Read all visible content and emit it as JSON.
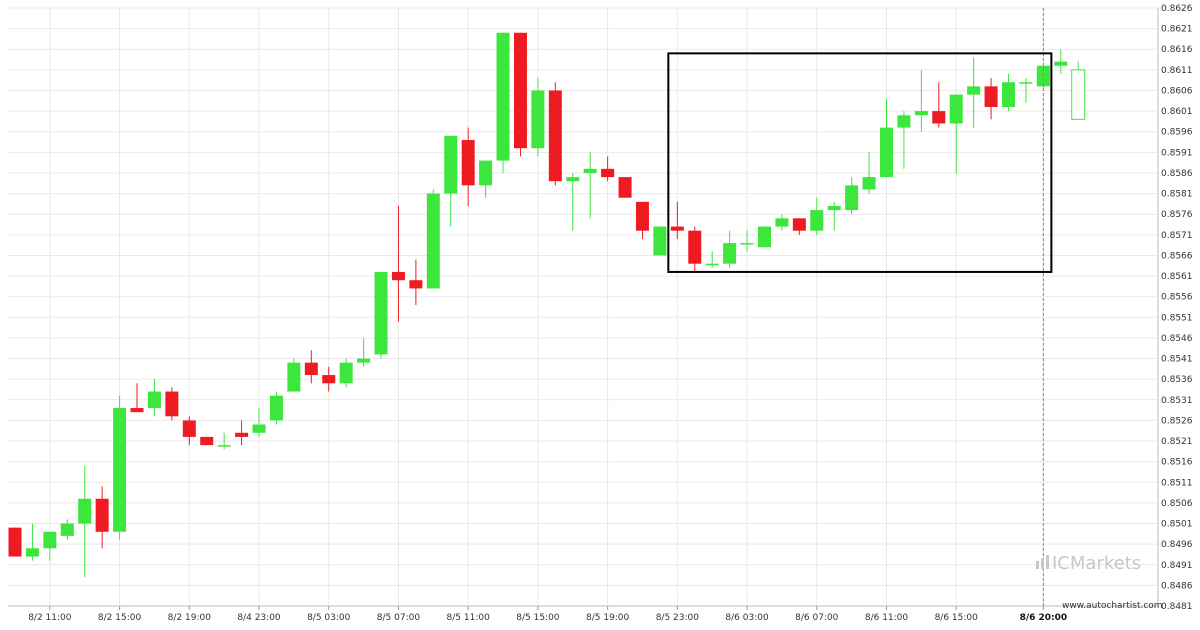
{
  "chart_data": {
    "type": "candlestick",
    "y_ticks": [
      0.8481,
      0.8486,
      0.8491,
      0.8496,
      0.8501,
      0.8506,
      0.8511,
      0.8516,
      0.8521,
      0.8526,
      0.8531,
      0.8536,
      0.8541,
      0.8546,
      0.8551,
      0.8556,
      0.8561,
      0.8566,
      0.8571,
      0.8576,
      0.8581,
      0.8586,
      0.8591,
      0.8596,
      0.8601,
      0.8606,
      0.8611,
      0.8616,
      0.8621,
      0.8626
    ],
    "ylim": [
      0.8481,
      0.8626
    ],
    "x_ticks": [
      {
        "label": "8/2 11:00",
        "index": 2
      },
      {
        "label": "8/2 15:00",
        "index": 6
      },
      {
        "label": "8/2 19:00",
        "index": 10
      },
      {
        "label": "8/4 23:00",
        "index": 14
      },
      {
        "label": "8/5 03:00",
        "index": 18
      },
      {
        "label": "8/5 07:00",
        "index": 22
      },
      {
        "label": "8/5 11:00",
        "index": 26
      },
      {
        "label": "8/5 15:00",
        "index": 30
      },
      {
        "label": "8/5 19:00",
        "index": 34
      },
      {
        "label": "8/5 23:00",
        "index": 38
      },
      {
        "label": "8/6 03:00",
        "index": 42
      },
      {
        "label": "8/6 07:00",
        "index": 46
      },
      {
        "label": "8/6 11:00",
        "index": 50
      },
      {
        "label": "8/6 15:00",
        "index": 54
      },
      {
        "label": "8/6 20:00",
        "index": 59,
        "bold": true
      }
    ],
    "candles": [
      {
        "o": 0.85,
        "h": 0.85,
        "l": 0.8493,
        "c": 0.8493
      },
      {
        "o": 0.8493,
        "h": 0.8501,
        "l": 0.8492,
        "c": 0.8495
      },
      {
        "o": 0.8495,
        "h": 0.8499,
        "l": 0.8492,
        "c": 0.8499
      },
      {
        "o": 0.8498,
        "h": 0.8502,
        "l": 0.8497,
        "c": 0.8501
      },
      {
        "o": 0.8501,
        "h": 0.8515,
        "l": 0.8488,
        "c": 0.8507
      },
      {
        "o": 0.8507,
        "h": 0.851,
        "l": 0.8495,
        "c": 0.8499
      },
      {
        "o": 0.8499,
        "h": 0.8532,
        "l": 0.8497,
        "c": 0.8529
      },
      {
        "o": 0.8529,
        "h": 0.8535,
        "l": 0.8528,
        "c": 0.8528
      },
      {
        "o": 0.8529,
        "h": 0.8536,
        "l": 0.8527,
        "c": 0.8533
      },
      {
        "o": 0.8533,
        "h": 0.8534,
        "l": 0.8526,
        "c": 0.8527
      },
      {
        "o": 0.8526,
        "h": 0.8527,
        "l": 0.852,
        "c": 0.8522
      },
      {
        "o": 0.8522,
        "h": 0.8522,
        "l": 0.852,
        "c": 0.852
      },
      {
        "o": 0.852,
        "h": 0.8523,
        "l": 0.8519,
        "c": 0.852
      },
      {
        "o": 0.8523,
        "h": 0.8526,
        "l": 0.852,
        "c": 0.8522
      },
      {
        "o": 0.8523,
        "h": 0.8529,
        "l": 0.8522,
        "c": 0.8525
      },
      {
        "o": 0.8526,
        "h": 0.8533,
        "l": 0.8525,
        "c": 0.8532
      },
      {
        "o": 0.8533,
        "h": 0.8541,
        "l": 0.8533,
        "c": 0.854
      },
      {
        "o": 0.854,
        "h": 0.8543,
        "l": 0.8535,
        "c": 0.8537
      },
      {
        "o": 0.8537,
        "h": 0.8539,
        "l": 0.8533,
        "c": 0.8535
      },
      {
        "o": 0.8535,
        "h": 0.8541,
        "l": 0.8534,
        "c": 0.854
      },
      {
        "o": 0.854,
        "h": 0.8546,
        "l": 0.8539,
        "c": 0.8541
      },
      {
        "o": 0.8542,
        "h": 0.8562,
        "l": 0.8541,
        "c": 0.8562
      },
      {
        "o": 0.8562,
        "h": 0.8578,
        "l": 0.855,
        "c": 0.856
      },
      {
        "o": 0.856,
        "h": 0.8565,
        "l": 0.8554,
        "c": 0.8558
      },
      {
        "o": 0.8558,
        "h": 0.8582,
        "l": 0.8558,
        "c": 0.8581
      },
      {
        "o": 0.8581,
        "h": 0.8595,
        "l": 0.8573,
        "c": 0.8595
      },
      {
        "o": 0.8594,
        "h": 0.8597,
        "l": 0.8578,
        "c": 0.8583
      },
      {
        "o": 0.8583,
        "h": 0.8589,
        "l": 0.858,
        "c": 0.8589
      },
      {
        "o": 0.8589,
        "h": 0.862,
        "l": 0.8586,
        "c": 0.862
      },
      {
        "o": 0.862,
        "h": 0.862,
        "l": 0.859,
        "c": 0.8592
      },
      {
        "o": 0.8592,
        "h": 0.8609,
        "l": 0.859,
        "c": 0.8606
      },
      {
        "o": 0.8606,
        "h": 0.8608,
        "l": 0.8583,
        "c": 0.8584
      },
      {
        "o": 0.8584,
        "h": 0.8586,
        "l": 0.8572,
        "c": 0.8585
      },
      {
        "o": 0.8586,
        "h": 0.8591,
        "l": 0.8575,
        "c": 0.8587
      },
      {
        "o": 0.8587,
        "h": 0.859,
        "l": 0.8584,
        "c": 0.8585
      },
      {
        "o": 0.8585,
        "h": 0.8585,
        "l": 0.858,
        "c": 0.858
      },
      {
        "o": 0.8579,
        "h": 0.8579,
        "l": 0.857,
        "c": 0.8572
      },
      {
        "o": 0.8566,
        "h": 0.8573,
        "l": 0.8566,
        "c": 0.8573
      },
      {
        "o": 0.8573,
        "h": 0.8579,
        "l": 0.857,
        "c": 0.8572
      },
      {
        "o": 0.8572,
        "h": 0.8573,
        "l": 0.8562,
        "c": 0.8564
      },
      {
        "o": 0.8564,
        "h": 0.8567,
        "l": 0.8563,
        "c": 0.8564
      },
      {
        "o": 0.8564,
        "h": 0.8572,
        "l": 0.8563,
        "c": 0.8569
      },
      {
        "o": 0.8569,
        "h": 0.8572,
        "l": 0.8567,
        "c": 0.8569
      },
      {
        "o": 0.8568,
        "h": 0.8573,
        "l": 0.8568,
        "c": 0.8573
      },
      {
        "o": 0.8573,
        "h": 0.8576,
        "l": 0.8572,
        "c": 0.8575
      },
      {
        "o": 0.8575,
        "h": 0.8575,
        "l": 0.8571,
        "c": 0.8572
      },
      {
        "o": 0.8572,
        "h": 0.858,
        "l": 0.8571,
        "c": 0.8577
      },
      {
        "o": 0.8577,
        "h": 0.8579,
        "l": 0.8572,
        "c": 0.8578
      },
      {
        "o": 0.8577,
        "h": 0.8585,
        "l": 0.8576,
        "c": 0.8583
      },
      {
        "o": 0.8582,
        "h": 0.8591,
        "l": 0.8581,
        "c": 0.8585
      },
      {
        "o": 0.8585,
        "h": 0.8604,
        "l": 0.8585,
        "c": 0.8597
      },
      {
        "o": 0.8597,
        "h": 0.8601,
        "l": 0.8587,
        "c": 0.86
      },
      {
        "o": 0.86,
        "h": 0.8611,
        "l": 0.8596,
        "c": 0.8601
      },
      {
        "o": 0.8601,
        "h": 0.8608,
        "l": 0.8597,
        "c": 0.8598
      },
      {
        "o": 0.8598,
        "h": 0.8605,
        "l": 0.8586,
        "c": 0.8605
      },
      {
        "o": 0.8605,
        "h": 0.8614,
        "l": 0.8597,
        "c": 0.8607
      },
      {
        "o": 0.8607,
        "h": 0.8609,
        "l": 0.8599,
        "c": 0.8602
      },
      {
        "o": 0.8602,
        "h": 0.861,
        "l": 0.8601,
        "c": 0.8608
      },
      {
        "o": 0.8608,
        "h": 0.8609,
        "l": 0.8603,
        "c": 0.8608
      },
      {
        "o": 0.8607,
        "h": 0.8612,
        "l": 0.8606,
        "c": 0.8612
      },
      {
        "o": 0.8612,
        "h": 0.8616,
        "l": 0.861,
        "c": 0.8613
      },
      {
        "o": 0.8599,
        "h": 0.8613,
        "l": 0.8599,
        "c": 0.8611,
        "hollow": true
      }
    ],
    "pattern_box": {
      "start_index": 38,
      "end_index": 59,
      "top": 0.8615,
      "bottom": 0.8562
    },
    "current_marker_index": 59,
    "colors": {
      "up": "#3ce63c",
      "down": "#ef1b22",
      "projection": "#3ce63c",
      "box": "#000000",
      "grid": "#e9e9e9",
      "marker": "#888888"
    }
  },
  "branding": {
    "logo_text": "ICMarkets",
    "source": "www.autochartist.com"
  }
}
